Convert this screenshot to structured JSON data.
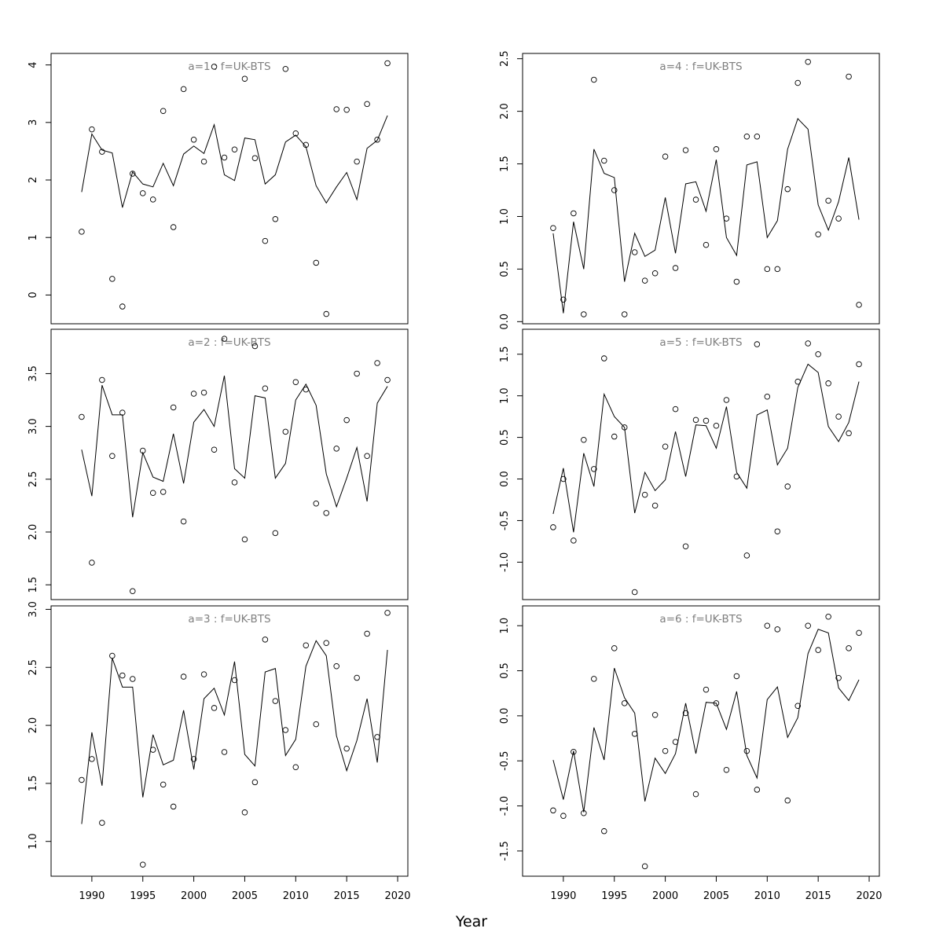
{
  "figure": {
    "xlabel": "Year",
    "point_color": "#000000",
    "line_color": "#000000",
    "title_color": "#7f7f7f"
  },
  "chart_data": [
    {
      "type": "scatter",
      "title": "a=1 : f=UK-BTS",
      "xlim": [
        1986,
        2021
      ],
      "ylim": [
        -0.5,
        4.2
      ],
      "yticks": [
        0,
        1,
        2,
        3,
        4
      ],
      "xticks": [],
      "observed": {
        "x": [
          1989,
          1990,
          1991,
          1992,
          1993,
          1994,
          1995,
          1996,
          1997,
          1998,
          1999,
          2000,
          2001,
          2002,
          2003,
          2004,
          2005,
          2006,
          2007,
          2008,
          2009,
          2010,
          2011,
          2012,
          2013,
          2014,
          2015,
          2016,
          2017,
          2018,
          2019
        ],
        "y": [
          1.1,
          2.88,
          2.49,
          0.28,
          -0.2,
          2.11,
          1.77,
          1.66,
          3.2,
          1.18,
          3.58,
          2.7,
          2.32,
          3.97,
          2.39,
          2.53,
          3.76,
          2.38,
          0.94,
          1.32,
          3.93,
          2.81,
          2.61,
          0.56,
          -0.33,
          3.23,
          3.22,
          2.32,
          3.32,
          2.7,
          4.03
        ]
      },
      "fitted": {
        "x": [
          1989,
          1990,
          1991,
          1992,
          1993,
          1994,
          1995,
          1996,
          1997,
          1998,
          1999,
          2000,
          2001,
          2002,
          2003,
          2004,
          2005,
          2006,
          2007,
          2008,
          2009,
          2010,
          2011,
          2012,
          2013,
          2014,
          2015,
          2016,
          2017,
          2018,
          2019
        ],
        "y": [
          1.79,
          2.8,
          2.52,
          2.47,
          1.52,
          2.14,
          1.93,
          1.88,
          2.29,
          1.9,
          2.45,
          2.59,
          2.46,
          2.96,
          2.09,
          1.99,
          2.73,
          2.7,
          1.93,
          2.09,
          2.66,
          2.78,
          2.58,
          1.9,
          1.6,
          1.88,
          2.13,
          1.66,
          2.55,
          2.69,
          3.12
        ]
      }
    },
    {
      "type": "scatter",
      "title": "a=2 : f=UK-BTS",
      "xlim": [
        1986,
        2021
      ],
      "ylim": [
        1.36,
        3.92
      ],
      "yticks": [
        1.5,
        2.0,
        2.5,
        3.0,
        3.5
      ],
      "xticks": [],
      "observed": {
        "x": [
          1989,
          1990,
          1991,
          1992,
          1993,
          1994,
          1995,
          1996,
          1997,
          1998,
          1999,
          2000,
          2001,
          2002,
          2003,
          2004,
          2005,
          2006,
          2007,
          2008,
          2009,
          2010,
          2011,
          2012,
          2013,
          2014,
          2015,
          2016,
          2017,
          2018,
          2019
        ],
        "y": [
          3.09,
          1.71,
          3.44,
          2.72,
          3.13,
          1.44,
          2.77,
          2.37,
          2.38,
          3.18,
          2.1,
          3.31,
          3.32,
          2.78,
          3.83,
          2.47,
          1.93,
          3.76,
          3.36,
          1.99,
          2.95,
          3.42,
          3.35,
          2.27,
          2.18,
          2.79,
          3.06,
          3.5,
          2.72,
          3.6,
          3.44
        ]
      },
      "fitted": {
        "x": [
          1989,
          1990,
          1991,
          1992,
          1993,
          1994,
          1995,
          1996,
          1997,
          1998,
          1999,
          2000,
          2001,
          2002,
          2003,
          2004,
          2005,
          2006,
          2007,
          2008,
          2009,
          2010,
          2011,
          2012,
          2013,
          2014,
          2015,
          2016,
          2017,
          2018,
          2019
        ],
        "y": [
          2.78,
          2.34,
          3.39,
          3.11,
          3.11,
          2.14,
          2.75,
          2.52,
          2.48,
          2.93,
          2.46,
          3.04,
          3.16,
          3.0,
          3.48,
          2.6,
          2.51,
          3.29,
          3.27,
          2.51,
          2.65,
          3.25,
          3.4,
          3.2,
          2.55,
          2.24,
          2.51,
          2.8,
          2.29,
          3.22,
          3.38
        ]
      }
    },
    {
      "type": "scatter",
      "title": "a=3 : f=UK-BTS",
      "xlim": [
        1986,
        2021
      ],
      "ylim": [
        0.7,
        3.03
      ],
      "yticks": [
        1.0,
        1.5,
        2.0,
        2.5,
        3.0
      ],
      "xticks": [
        1990,
        1995,
        2000,
        2005,
        2010,
        2015,
        2020
      ],
      "observed": {
        "x": [
          1989,
          1990,
          1991,
          1992,
          1993,
          1994,
          1995,
          1996,
          1997,
          1998,
          1999,
          2000,
          2001,
          2002,
          2003,
          2004,
          2005,
          2006,
          2007,
          2008,
          2009,
          2010,
          2011,
          2012,
          2013,
          2014,
          2015,
          2016,
          2017,
          2018,
          2019
        ],
        "y": [
          1.53,
          1.71,
          1.16,
          2.6,
          2.43,
          2.4,
          0.8,
          1.79,
          1.49,
          1.3,
          2.42,
          1.71,
          2.44,
          2.15,
          1.77,
          2.39,
          1.25,
          1.51,
          2.74,
          2.21,
          1.96,
          1.64,
          2.69,
          2.01,
          2.71,
          2.51,
          1.8,
          2.41,
          2.79,
          1.9,
          2.97
        ]
      },
      "fitted": {
        "x": [
          1989,
          1990,
          1991,
          1992,
          1993,
          1994,
          1995,
          1996,
          1997,
          1998,
          1999,
          2000,
          2001,
          2002,
          2003,
          2004,
          2005,
          2006,
          2007,
          2008,
          2009,
          2010,
          2011,
          2012,
          2013,
          2014,
          2015,
          2016,
          2017,
          2018,
          2019
        ],
        "y": [
          1.15,
          1.94,
          1.48,
          2.58,
          2.33,
          2.33,
          1.38,
          1.92,
          1.66,
          1.7,
          2.13,
          1.62,
          2.23,
          2.32,
          2.09,
          2.55,
          1.75,
          1.65,
          2.46,
          2.49,
          1.74,
          1.88,
          2.51,
          2.73,
          2.6,
          1.91,
          1.61,
          1.87,
          2.23,
          1.68,
          2.65
        ]
      }
    },
    {
      "type": "scatter",
      "title": "a=4 : f=UK-BTS",
      "xlim": [
        1986,
        2021
      ],
      "ylim": [
        -0.02,
        2.55
      ],
      "yticks": [
        0.0,
        0.5,
        1.0,
        1.5,
        2.0,
        2.5
      ],
      "xticks": [],
      "observed": {
        "x": [
          1989,
          1990,
          1991,
          1992,
          1993,
          1994,
          1995,
          1996,
          1997,
          1998,
          1999,
          2000,
          2001,
          2002,
          2003,
          2004,
          2005,
          2006,
          2007,
          2008,
          2009,
          2010,
          2011,
          2012,
          2013,
          2014,
          2015,
          2016,
          2017,
          2018,
          2019
        ],
        "y": [
          0.89,
          0.21,
          1.03,
          0.07,
          2.3,
          1.53,
          1.25,
          0.07,
          0.66,
          0.39,
          0.46,
          1.57,
          0.51,
          1.63,
          1.16,
          0.73,
          1.64,
          0.98,
          0.38,
          1.76,
          1.76,
          0.5,
          0.5,
          1.26,
          2.27,
          2.47,
          0.83,
          1.15,
          0.98,
          2.33,
          0.16
        ]
      },
      "fitted": {
        "x": [
          1989,
          1990,
          1991,
          1992,
          1993,
          1994,
          1995,
          1996,
          1997,
          1998,
          1999,
          2000,
          2001,
          2002,
          2003,
          2004,
          2005,
          2006,
          2007,
          2008,
          2009,
          2010,
          2011,
          2012,
          2013,
          2014,
          2015,
          2016,
          2017,
          2018,
          2019
        ],
        "y": [
          0.84,
          0.08,
          0.95,
          0.5,
          1.64,
          1.41,
          1.37,
          0.38,
          0.84,
          0.62,
          0.68,
          1.18,
          0.65,
          1.31,
          1.33,
          1.05,
          1.54,
          0.8,
          0.63,
          1.49,
          1.52,
          0.8,
          0.96,
          1.64,
          1.93,
          1.83,
          1.11,
          0.87,
          1.14,
          1.56,
          0.97
        ]
      }
    },
    {
      "type": "scatter",
      "title": "a=5 : f=UK-BTS",
      "xlim": [
        1986,
        2021
      ],
      "ylim": [
        -1.45,
        1.8
      ],
      "yticks": [
        -1.0,
        -0.5,
        0.0,
        0.5,
        1.0,
        1.5
      ],
      "xticks": [],
      "observed": {
        "x": [
          1989,
          1990,
          1991,
          1992,
          1993,
          1994,
          1995,
          1996,
          1997,
          1998,
          1999,
          2000,
          2001,
          2002,
          2003,
          2004,
          2005,
          2006,
          2007,
          2008,
          2009,
          2010,
          2011,
          2012,
          2013,
          2014,
          2015,
          2016,
          2017,
          2018,
          2019
        ],
        "y": [
          -0.58,
          0.0,
          -0.74,
          0.47,
          0.12,
          1.45,
          0.51,
          0.62,
          -1.36,
          -0.19,
          -0.32,
          0.39,
          0.84,
          -0.81,
          0.71,
          0.7,
          0.64,
          0.95,
          0.03,
          -0.92,
          1.62,
          0.99,
          -0.63,
          -0.09,
          1.17,
          1.63,
          1.5,
          1.15,
          0.75,
          0.55,
          1.38
        ]
      },
      "fitted": {
        "x": [
          1989,
          1990,
          1991,
          1992,
          1993,
          1994,
          1995,
          1996,
          1997,
          1998,
          1999,
          2000,
          2001,
          2002,
          2003,
          2004,
          2005,
          2006,
          2007,
          2008,
          2009,
          2010,
          2011,
          2012,
          2013,
          2014,
          2015,
          2016,
          2017,
          2018,
          2019
        ],
        "y": [
          -0.42,
          0.13,
          -0.64,
          0.31,
          -0.09,
          1.02,
          0.75,
          0.62,
          -0.41,
          0.08,
          -0.14,
          -0.01,
          0.57,
          0.03,
          0.65,
          0.64,
          0.37,
          0.87,
          0.08,
          -0.11,
          0.77,
          0.83,
          0.17,
          0.37,
          1.1,
          1.38,
          1.28,
          0.63,
          0.45,
          0.68,
          1.17
        ]
      }
    },
    {
      "type": "scatter",
      "title": "a=6 : f=UK-BTS",
      "xlim": [
        1986,
        2021
      ],
      "ylim": [
        -1.78,
        1.22
      ],
      "yticks": [
        -1.5,
        -1.0,
        -0.5,
        0.0,
        0.5,
        1.0
      ],
      "xticks": [
        1990,
        1995,
        2000,
        2005,
        2010,
        2015,
        2020
      ],
      "observed": {
        "x": [
          1989,
          1990,
          1991,
          1992,
          1993,
          1994,
          1995,
          1996,
          1997,
          1998,
          1999,
          2000,
          2001,
          2002,
          2003,
          2004,
          2005,
          2006,
          2007,
          2008,
          2009,
          2010,
          2011,
          2012,
          2013,
          2014,
          2015,
          2016,
          2017,
          2018,
          2019
        ],
        "y": [
          -1.05,
          -1.11,
          -0.4,
          -1.08,
          0.41,
          -1.28,
          0.75,
          0.14,
          -0.2,
          -1.67,
          0.01,
          -0.39,
          -0.29,
          0.03,
          -0.87,
          0.29,
          0.14,
          -0.6,
          0.44,
          -0.39,
          -0.82,
          1.0,
          0.96,
          -0.94,
          0.11,
          1.0,
          0.73,
          1.1,
          0.42,
          0.75,
          0.92
        ]
      },
      "fitted": {
        "x": [
          1989,
          1990,
          1991,
          1992,
          1993,
          1994,
          1995,
          1996,
          1997,
          1998,
          1999,
          2000,
          2001,
          2002,
          2003,
          2004,
          2005,
          2006,
          2007,
          2008,
          2009,
          2010,
          2011,
          2012,
          2013,
          2014,
          2015,
          2016,
          2017,
          2018,
          2019
        ],
        "y": [
          -0.49,
          -0.93,
          -0.39,
          -1.07,
          -0.13,
          -0.49,
          0.53,
          0.2,
          0.03,
          -0.95,
          -0.47,
          -0.64,
          -0.42,
          0.14,
          -0.42,
          0.15,
          0.14,
          -0.15,
          0.27,
          -0.44,
          -0.69,
          0.18,
          0.32,
          -0.24,
          -0.02,
          0.69,
          0.96,
          0.92,
          0.31,
          0.17,
          0.4
        ]
      }
    }
  ]
}
